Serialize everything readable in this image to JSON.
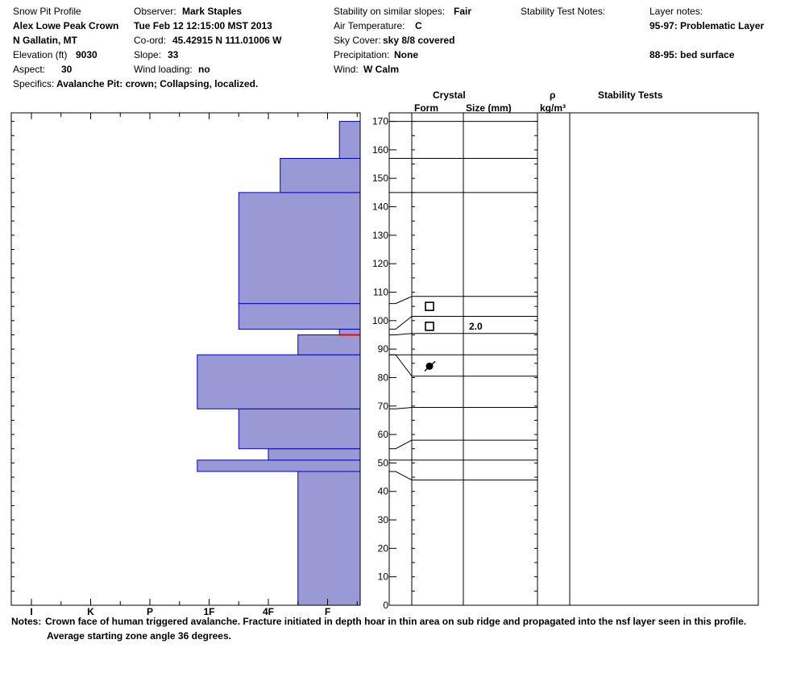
{
  "header": {
    "title": "Snow Pit Profile",
    "location_name": "Alex Lowe Peak Crown",
    "region": "N Gallatin, MT",
    "elevation_label": "Elevation (ft)",
    "elevation_value": "9030",
    "aspect_label": "Aspect:",
    "aspect_value": "30",
    "specifics_label": "Specifics:",
    "specifics_value": "Avalanche Pit: crown; Collapsing, localized.",
    "observer_label": "Observer:",
    "observer_value": "Mark Staples",
    "date": "Tue Feb 12 12:15:00 MST 2013",
    "coord_label": "Co-ord:",
    "coord_value": "45.42915 N 111.01006 W",
    "slope_label": "Slope:",
    "slope_value": "33",
    "wind_loading_label": "Wind loading:",
    "wind_loading_value": "no",
    "stability_label": "Stability on similar slopes:",
    "stability_value": "Fair",
    "air_temp_label": "Air Temperature:",
    "air_temp_value": "C",
    "sky_label": "Sky Cover:",
    "sky_value": "sky 8/8 covered",
    "precip_label": "Precipitation:",
    "precip_value": "None",
    "wind_label": "Wind:",
    "wind_value": "W Calm",
    "stability_notes_label": "Stability Test Notes:",
    "layer_notes_label": "Layer notes:",
    "layer_note_1": "95-97: Problematic Layer",
    "layer_note_2": "88-95: bed surface"
  },
  "columns": {
    "crystal": "Crystal",
    "form": "Form",
    "size": "Size (mm)",
    "rho": "ρ",
    "density_unit": "kg/m³",
    "stability_tests": "Stability Tests"
  },
  "notes": {
    "label": "Notes:",
    "line1": "Crown face of human triggered avalanche. Fracture initiated in depth hoar in thin area on sub ridge and propagated into the nsf layer seen in this profile.",
    "line2": "Average starting zone angle 36 degrees."
  },
  "chart_data": {
    "type": "bar",
    "title": "",
    "xlabel": "",
    "ylabel": "",
    "x_ticks": [
      "I",
      "K",
      "P",
      "1F",
      "4F",
      "F"
    ],
    "y_ticks": [
      0,
      10,
      20,
      30,
      40,
      50,
      60,
      70,
      80,
      90,
      100,
      110,
      120,
      130,
      140,
      150,
      160,
      170
    ],
    "ylim": [
      0,
      173
    ],
    "hardness_scale": "index from I (0) to F (5.5); half steps marked",
    "bar_color": "#9999d5",
    "bar_edge": "#0000c0",
    "weak_layer_color": "#ff0000",
    "hardness_layers": [
      {
        "bottom": 0,
        "top": 47,
        "hardness": 4.5
      },
      {
        "bottom": 47,
        "top": 51,
        "hardness": 2.8
      },
      {
        "bottom": 51,
        "top": 55,
        "hardness": 4.0
      },
      {
        "bottom": 55,
        "top": 69,
        "hardness": 3.5
      },
      {
        "bottom": 69,
        "top": 88,
        "hardness": 2.8
      },
      {
        "bottom": 88,
        "top": 95,
        "hardness": 4.5
      },
      {
        "bottom": 95,
        "top": 97,
        "hardness": 5.2
      },
      {
        "bottom": 97,
        "top": 106,
        "hardness": 3.5
      },
      {
        "bottom": 106,
        "top": 145,
        "hardness": 3.5
      },
      {
        "bottom": 145,
        "top": 157,
        "hardness": 4.2
      },
      {
        "bottom": 157,
        "top": 170,
        "hardness": 5.2
      }
    ],
    "weak_layer_height": 95,
    "layer_boundaries": [
      170,
      157,
      145,
      108.5,
      101.5,
      95.5,
      88,
      80.5,
      69.5,
      58,
      51,
      44
    ],
    "crystals": [
      {
        "height": 105,
        "form": "square",
        "size": ""
      },
      {
        "height": 98,
        "form": "square",
        "size": "2.0"
      },
      {
        "height": 84,
        "form": "surface-hoar",
        "size": ""
      }
    ]
  }
}
